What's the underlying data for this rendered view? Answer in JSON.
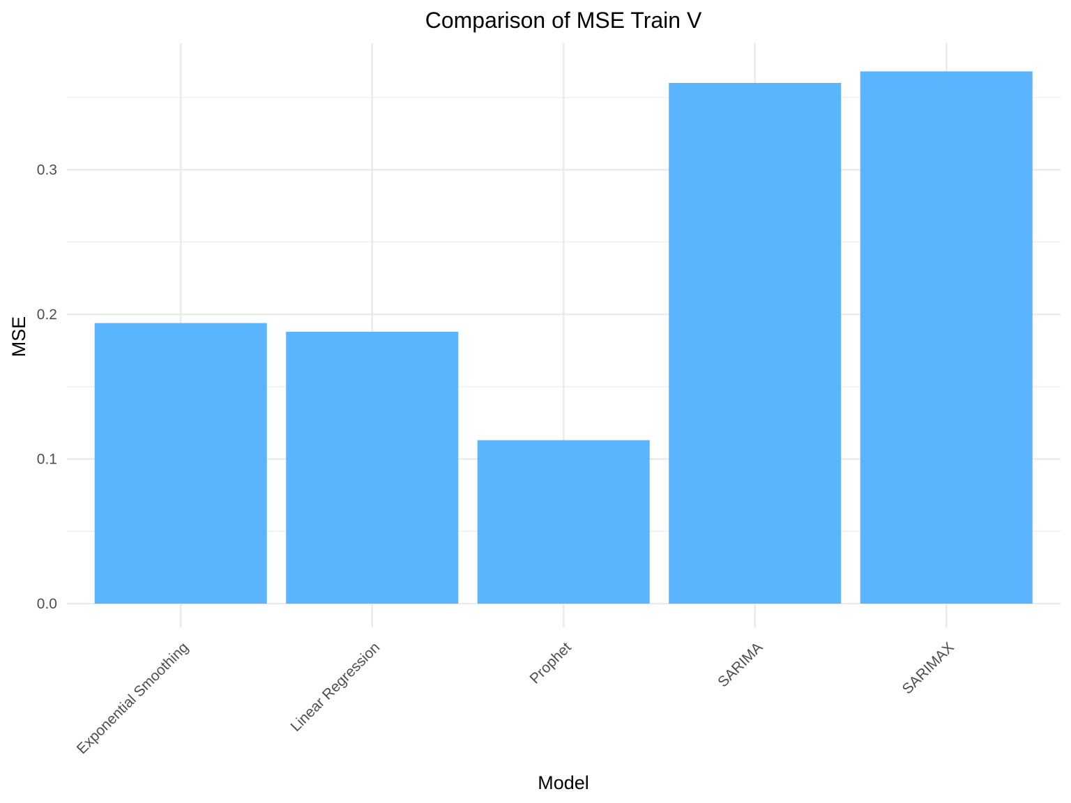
{
  "chart_data": {
    "type": "bar",
    "title": "Comparison of MSE Train V",
    "xlabel": "Model",
    "ylabel": "MSE",
    "categories": [
      "Exponential Smoothing",
      "Linear Regression",
      "Prophet",
      "SARIMA",
      "SARIMAX"
    ],
    "values": [
      0.194,
      0.188,
      0.113,
      0.36,
      0.368
    ],
    "ylim": [
      0,
      0.4
    ],
    "yticks": [
      "0.0",
      "0.1",
      "0.2",
      "0.3"
    ],
    "grid": true,
    "legend": "none",
    "bar_color": "#5AB4FE",
    "grid_color": "#EBEBEB"
  }
}
